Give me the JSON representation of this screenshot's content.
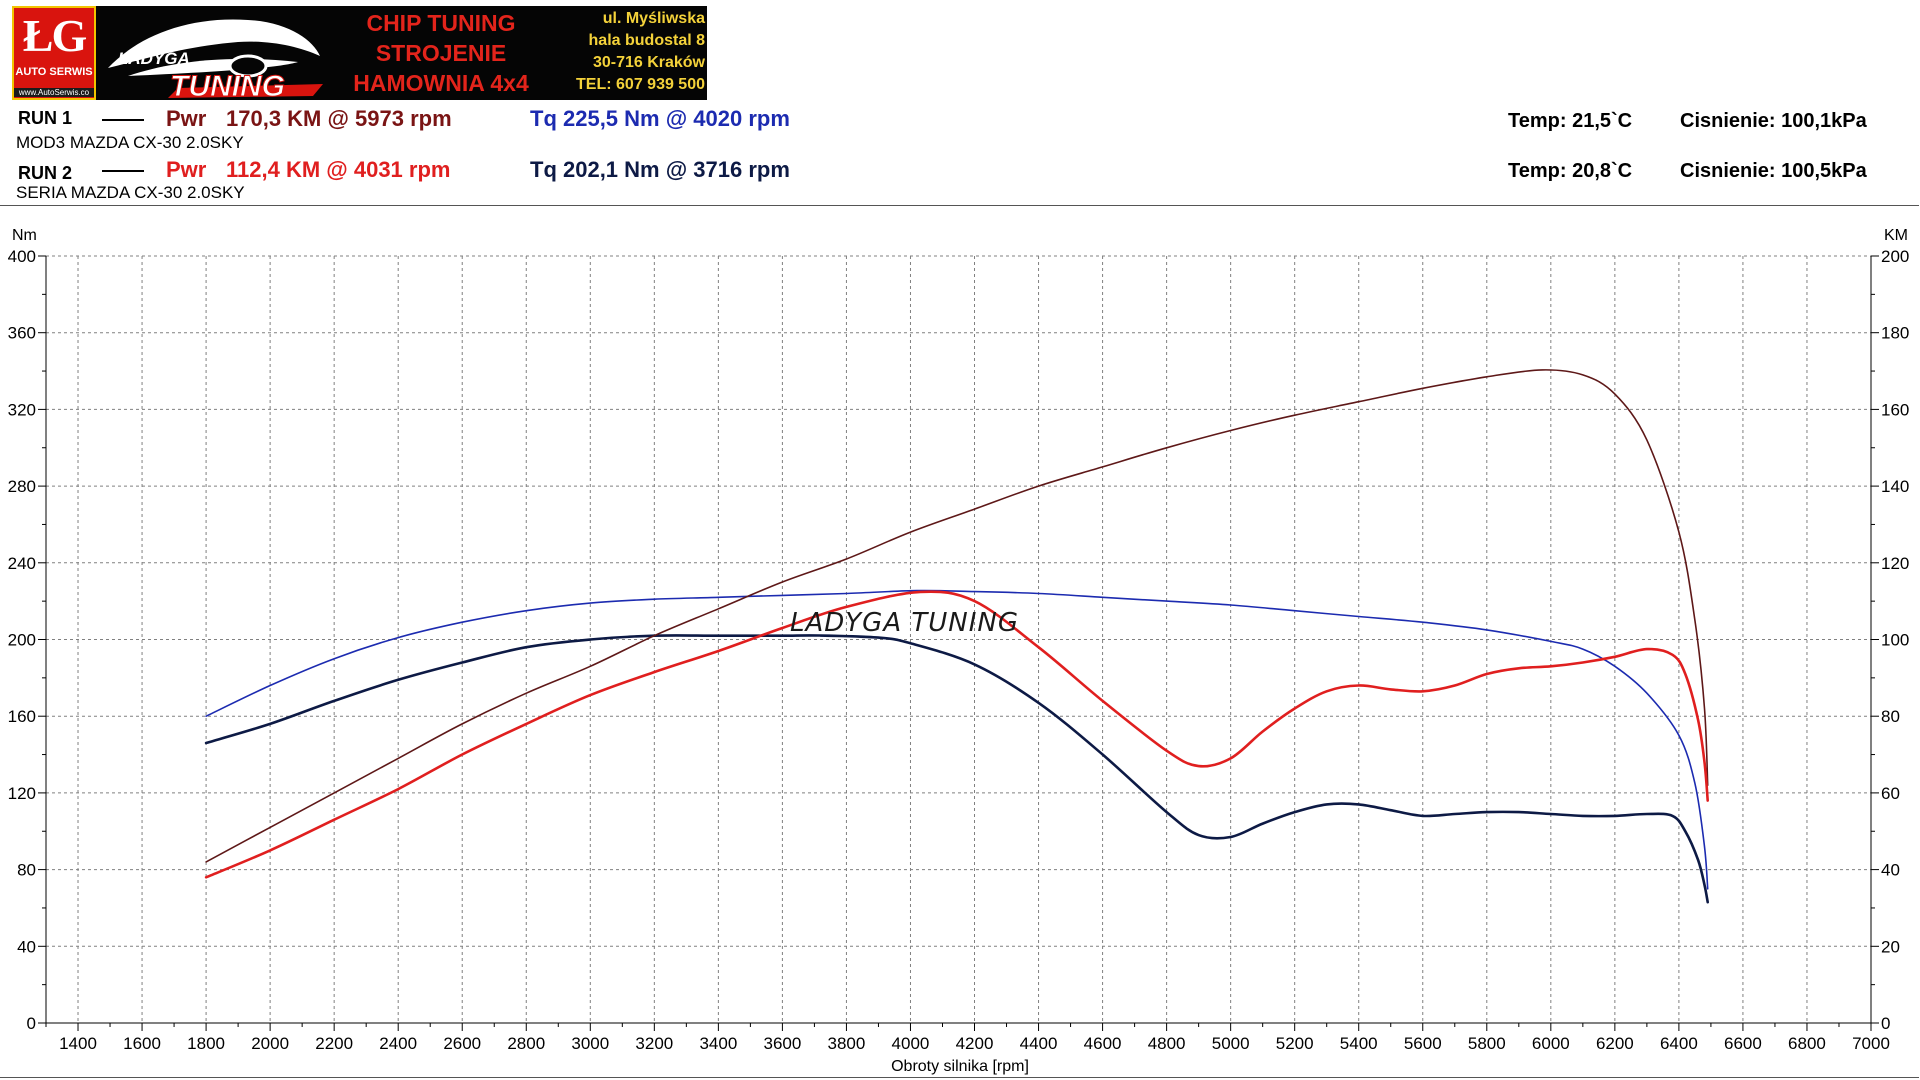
{
  "banner": {
    "logo_mark": "ŁG",
    "logo_sub": "AUTO SERWIS",
    "logo_www": "www.AutoSerwis.co",
    "brand_top": "ŁADYGA",
    "brand_bottom": "TUNING",
    "chip_lines": [
      "CHIP TUNING",
      "STROJENIE",
      "HAMOWNIA 4x4"
    ],
    "address_lines": [
      "ul. Myśliwska",
      "hala budostal 8",
      "30-716 Kraków",
      "TEL: 607 939 500"
    ]
  },
  "runs": [
    {
      "label": "RUN 1",
      "pwr_prefix": "Pwr",
      "pwr": "170,3 KM @ 5973 rpm",
      "tq": "Tq 225,5 Nm @ 4020 rpm",
      "description": "MOD3 MAZDA CX-30 2.0SKY",
      "temp": "Temp: 21,5`C",
      "pressure": "Cisnienie: 100,1kPa",
      "pwr_color": "#7a1414",
      "tq_color": "#1c2bb0"
    },
    {
      "label": "RUN 2",
      "pwr_prefix": "Pwr",
      "pwr": "112,4 KM @ 4031 rpm",
      "tq": "Tq 202,1 Nm @ 3716 rpm",
      "description": "SERIA MAZDA CX-30 2.0SKY",
      "temp": "Temp: 20,8`C",
      "pressure": "Cisnienie: 100,5kPa",
      "pwr_color": "#e01f1f",
      "tq_color": "#0d1a45"
    }
  ],
  "chart_data": {
    "type": "line",
    "xlabel": "Obroty silnika [rpm]",
    "ylabel_left": "Nm",
    "ylabel_right": "KM",
    "xlim": [
      1300,
      7000
    ],
    "ylim_left": [
      0,
      400
    ],
    "ylim_right": [
      0,
      200
    ],
    "x_ticks": [
      1400,
      1600,
      1800,
      2000,
      2200,
      2400,
      2600,
      2800,
      3000,
      3200,
      3400,
      3600,
      3800,
      4000,
      4200,
      4400,
      4600,
      4800,
      5000,
      5200,
      5400,
      5600,
      5800,
      6000,
      6200,
      6400,
      6600,
      6800,
      7000
    ],
    "y_ticks_left": [
      0,
      40,
      80,
      120,
      160,
      200,
      240,
      280,
      320,
      360,
      400
    ],
    "y_ticks_right": [
      0,
      20,
      40,
      60,
      80,
      100,
      120,
      140,
      160,
      180,
      200
    ],
    "grid": true,
    "watermark": "LADYGA TUNING",
    "series": [
      {
        "axis": "left",
        "color": "#1c2bb0",
        "width": 1.6,
        "points": [
          [
            1800,
            160
          ],
          [
            2000,
            176
          ],
          [
            2200,
            190
          ],
          [
            2400,
            201
          ],
          [
            2600,
            209
          ],
          [
            2800,
            215
          ],
          [
            3000,
            219
          ],
          [
            3200,
            221
          ],
          [
            3400,
            222
          ],
          [
            3600,
            223
          ],
          [
            3800,
            224
          ],
          [
            4020,
            225.5
          ],
          [
            4200,
            225
          ],
          [
            4400,
            224
          ],
          [
            4600,
            222
          ],
          [
            4800,
            220
          ],
          [
            5000,
            218
          ],
          [
            5200,
            215
          ],
          [
            5400,
            212
          ],
          [
            5600,
            209
          ],
          [
            5800,
            205
          ],
          [
            6000,
            199
          ],
          [
            6100,
            195
          ],
          [
            6200,
            186
          ],
          [
            6300,
            172
          ],
          [
            6400,
            150
          ],
          [
            6450,
            125
          ],
          [
            6480,
            92
          ],
          [
            6490,
            70
          ]
        ]
      },
      {
        "axis": "left",
        "color": "#0d1a45",
        "width": 2.6,
        "points": [
          [
            1800,
            146
          ],
          [
            2000,
            156
          ],
          [
            2200,
            168
          ],
          [
            2400,
            179
          ],
          [
            2600,
            188
          ],
          [
            2800,
            196
          ],
          [
            3000,
            200
          ],
          [
            3200,
            202
          ],
          [
            3400,
            202
          ],
          [
            3600,
            202
          ],
          [
            3716,
            202.1
          ],
          [
            3900,
            201
          ],
          [
            4000,
            198
          ],
          [
            4200,
            187
          ],
          [
            4400,
            167
          ],
          [
            4600,
            140
          ],
          [
            4800,
            110
          ],
          [
            4900,
            98
          ],
          [
            5000,
            97
          ],
          [
            5100,
            104
          ],
          [
            5200,
            110
          ],
          [
            5300,
            114
          ],
          [
            5400,
            114
          ],
          [
            5500,
            111
          ],
          [
            5600,
            108
          ],
          [
            5700,
            109
          ],
          [
            5800,
            110
          ],
          [
            5900,
            110
          ],
          [
            6000,
            109
          ],
          [
            6100,
            108
          ],
          [
            6200,
            108
          ],
          [
            6300,
            109
          ],
          [
            6380,
            108
          ],
          [
            6420,
            100
          ],
          [
            6460,
            85
          ],
          [
            6480,
            72
          ],
          [
            6490,
            63
          ]
        ]
      },
      {
        "axis": "right",
        "color": "#5e1818",
        "width": 1.6,
        "points": [
          [
            1800,
            42
          ],
          [
            2000,
            51
          ],
          [
            2200,
            60
          ],
          [
            2400,
            69
          ],
          [
            2600,
            78
          ],
          [
            2800,
            86
          ],
          [
            3000,
            93
          ],
          [
            3200,
            101
          ],
          [
            3400,
            108
          ],
          [
            3600,
            115
          ],
          [
            3800,
            121
          ],
          [
            4000,
            128
          ],
          [
            4200,
            134
          ],
          [
            4400,
            140
          ],
          [
            4600,
            145
          ],
          [
            4800,
            150
          ],
          [
            5000,
            154.5
          ],
          [
            5200,
            158.5
          ],
          [
            5400,
            162
          ],
          [
            5600,
            165.5
          ],
          [
            5800,
            168.5
          ],
          [
            5973,
            170.3
          ],
          [
            6100,
            169
          ],
          [
            6200,
            164
          ],
          [
            6300,
            152
          ],
          [
            6400,
            128
          ],
          [
            6450,
            105
          ],
          [
            6480,
            82
          ],
          [
            6490,
            62
          ]
        ]
      },
      {
        "axis": "right",
        "color": "#e01f1f",
        "width": 2.6,
        "points": [
          [
            1800,
            38
          ],
          [
            2000,
            45
          ],
          [
            2200,
            53
          ],
          [
            2400,
            61
          ],
          [
            2600,
            70
          ],
          [
            2800,
            78
          ],
          [
            3000,
            85.5
          ],
          [
            3200,
            91.5
          ],
          [
            3400,
            97
          ],
          [
            3600,
            103
          ],
          [
            3800,
            108.5
          ],
          [
            4031,
            112.4
          ],
          [
            4200,
            110
          ],
          [
            4400,
            98
          ],
          [
            4600,
            84
          ],
          [
            4800,
            71
          ],
          [
            4900,
            67
          ],
          [
            5000,
            69
          ],
          [
            5100,
            76
          ],
          [
            5200,
            82
          ],
          [
            5300,
            86.5
          ],
          [
            5400,
            88
          ],
          [
            5500,
            87
          ],
          [
            5600,
            86.5
          ],
          [
            5700,
            88
          ],
          [
            5800,
            91
          ],
          [
            5900,
            92.5
          ],
          [
            6000,
            93
          ],
          [
            6100,
            94
          ],
          [
            6200,
            95.5
          ],
          [
            6300,
            97.5
          ],
          [
            6380,
            96
          ],
          [
            6420,
            91
          ],
          [
            6460,
            79
          ],
          [
            6480,
            68
          ],
          [
            6490,
            58
          ]
        ]
      }
    ]
  }
}
